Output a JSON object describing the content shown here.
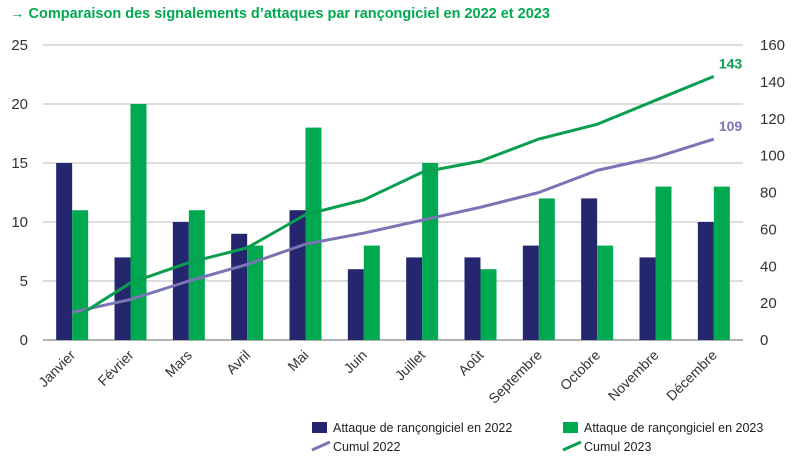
{
  "title": "→ Comparaison des signalements d’attaques par rançongiciel en 2022 et 2023",
  "chart_data": {
    "type": "bar+line",
    "title": "→ Comparaison des signalements d’attaques par rançongiciel en 2022 et 2023",
    "categories": [
      "Janvier",
      "Février",
      "Mars",
      "Avril",
      "Mai",
      "Juin",
      "Juillet",
      "Août",
      "Septembre",
      "Octobre",
      "Novembre",
      "Décembre"
    ],
    "left_axis": {
      "ylim": [
        0,
        25
      ],
      "ticks": [
        0,
        5,
        10,
        15,
        20,
        25
      ]
    },
    "right_axis": {
      "ylim": [
        0,
        160
      ],
      "ticks": [
        0,
        20,
        40,
        60,
        80,
        100,
        120,
        140,
        160
      ]
    },
    "grid": true,
    "legend_placement": "bottom-right",
    "series": [
      {
        "name": "Attaque de rançongiciel en 2022",
        "type": "bar",
        "axis": "left",
        "color": "#25276e",
        "values": [
          15,
          7,
          10,
          9,
          11,
          6,
          7,
          7,
          8,
          12,
          7,
          10
        ]
      },
      {
        "name": "Attaque de rançongiciel en 2023",
        "type": "bar",
        "axis": "left",
        "color": "#00a94f",
        "values": [
          11,
          20,
          11,
          8,
          18,
          8,
          15,
          6,
          12,
          8,
          13,
          13
        ]
      },
      {
        "name": "Cumul 2022",
        "type": "line",
        "axis": "right",
        "color": "#7b74b5",
        "values": [
          15,
          22,
          32,
          41,
          52,
          58,
          65,
          72,
          80,
          92,
          99,
          109
        ],
        "end_label": "109"
      },
      {
        "name": "Cumul 2023",
        "type": "line",
        "axis": "right",
        "color": "#0a9e50",
        "values": [
          11,
          31,
          42,
          50,
          68,
          76,
          91,
          97,
          109,
          117,
          130,
          143
        ],
        "end_label": "143"
      }
    ]
  }
}
